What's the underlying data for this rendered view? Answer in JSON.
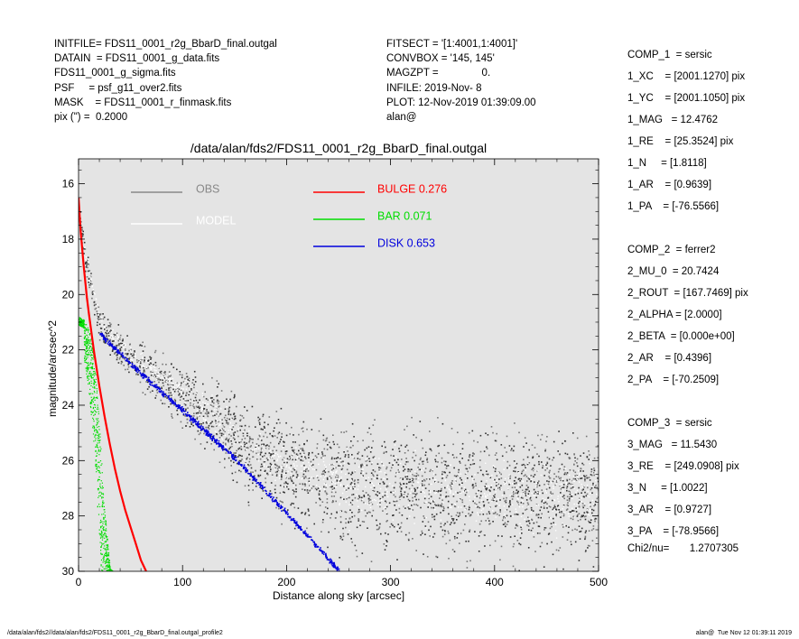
{
  "header": {
    "left": [
      "INITFILE= FDS11_0001_r2g_BbarD_final.outgal",
      "DATAIN  = FDS11_0001_g_data.fits",
      "FDS11_0001_g_sigma.fits",
      "PSF     = psf_g11_over2.fits",
      "MASK    = FDS11_0001_r_finmask.fits",
      "pix (\") =  0.2000"
    ],
    "middle": [
      "FITSECT = '[1:4001,1:4001]'",
      "CONVBOX = '145, 145'",
      "MAGZPT =               0.",
      "INFILE: 2019-Nov- 8",
      "PLOT: 12-Nov-2019 01:39:09.00",
      "alan@"
    ]
  },
  "parameters": [
    "COMP_1  = sersic",
    "1_XC    = [2001.1270] pix",
    "1_YC    = [2001.1050] pix",
    "1_MAG   = 12.4762",
    "1_RE    = [25.3524] pix",
    "1_N     = [1.8118]",
    "1_AR    = [0.9639]",
    "1_PA    = [-76.5566]",
    "",
    "COMP_2  = ferrer2",
    "2_MU_0  = 20.7424",
    "2_ROUT  = [167.7469] pix",
    "2_ALPHA = [2.0000]",
    "2_BETA  = [0.000e+00]",
    "2_AR    = [0.4396]",
    "2_PA    = [-70.2509]",
    "",
    "COMP_3  = sersic",
    "3_MAG   = 11.5430",
    "3_RE    = [249.0908] pix",
    "3_N     = [1.0022]",
    "3_AR    = [0.9727]",
    "3_PA    = [-78.9566]"
  ],
  "chi2": "Chi2/nu=       1.2707305",
  "footer": {
    "left": "/data/alan/fds2//data/alan/fds2/FDS11_0001_r2g_BbarD_final.outgal_profile2",
    "right": "alan@  Tue Nov 12 01:39:11 2019"
  },
  "chart_data": {
    "type": "scatter",
    "title": "/data/alan/fds2/FDS11_0001_r2g_BbarD_final.outgal",
    "xlabel": "Distance along sky [arcsec]",
    "ylabel": "magnitude/arcsec^2",
    "xlim": [
      0,
      500
    ],
    "ylim": [
      30,
      15.1
    ],
    "y_inverted": true,
    "xticks": [
      0,
      100,
      200,
      300,
      400,
      500
    ],
    "yticks": [
      16,
      18,
      20,
      22,
      24,
      26,
      28,
      30
    ],
    "background_color": "#e4e4e4",
    "legend": [
      {
        "label": "OBS",
        "value": "",
        "color": "#888888"
      },
      {
        "label": "MODEL",
        "value": "",
        "color": "#ffffff"
      },
      {
        "label": "BULGE",
        "value": "0.276",
        "color": "#ff0000"
      },
      {
        "label": "BAR",
        "value": "0.071",
        "color": "#00dd00"
      },
      {
        "label": "DISK",
        "value": "0.653",
        "color": "#0000dd"
      }
    ],
    "series": [
      {
        "name": "BULGE",
        "color": "#ff0000",
        "x": [
          0,
          2,
          5,
          8,
          10,
          15,
          20,
          25,
          30,
          35,
          40,
          45,
          50,
          55,
          60,
          65
        ],
        "y": [
          16.5,
          17.7,
          19.0,
          20.1,
          20.7,
          22.1,
          23.3,
          24.4,
          25.4,
          26.3,
          27.1,
          27.8,
          28.4,
          29.0,
          29.6,
          30.0
        ]
      },
      {
        "name": "BAR",
        "color": "#00dd00",
        "x": [
          0,
          5,
          10,
          15,
          20,
          25,
          30,
          33
        ],
        "y": [
          20.8,
          20.9,
          21.2,
          22.3,
          24.8,
          27.8,
          29.9,
          30.0
        ]
      },
      {
        "name": "DISK",
        "color": "#0000dd",
        "x": [
          20,
          50,
          100,
          150,
          200,
          250
        ],
        "y": [
          21.4,
          22.5,
          24.2,
          25.9,
          27.9,
          29.95
        ]
      },
      {
        "name": "OBS",
        "color": "#555555",
        "x": [
          0,
          5,
          10,
          20,
          40,
          60,
          80,
          100,
          130,
          160,
          200,
          250,
          300,
          400,
          500
        ],
        "y": [
          17.0,
          18.5,
          19.4,
          21.0,
          22.0,
          22.6,
          23.1,
          23.6,
          24.5,
          25.5,
          26.3,
          26.8,
          27.0,
          27.2,
          27.3
        ]
      },
      {
        "name": "MODEL",
        "color": "#ffffff",
        "x": [
          0,
          5,
          10,
          20,
          40,
          60,
          80,
          100,
          130,
          160,
          200,
          250,
          300,
          400,
          500
        ],
        "y": [
          16.8,
          18.3,
          19.3,
          20.9,
          21.8,
          22.4,
          22.9,
          23.5,
          24.4,
          25.4,
          26.2,
          26.8,
          27.0,
          27.2,
          27.3
        ]
      }
    ]
  }
}
